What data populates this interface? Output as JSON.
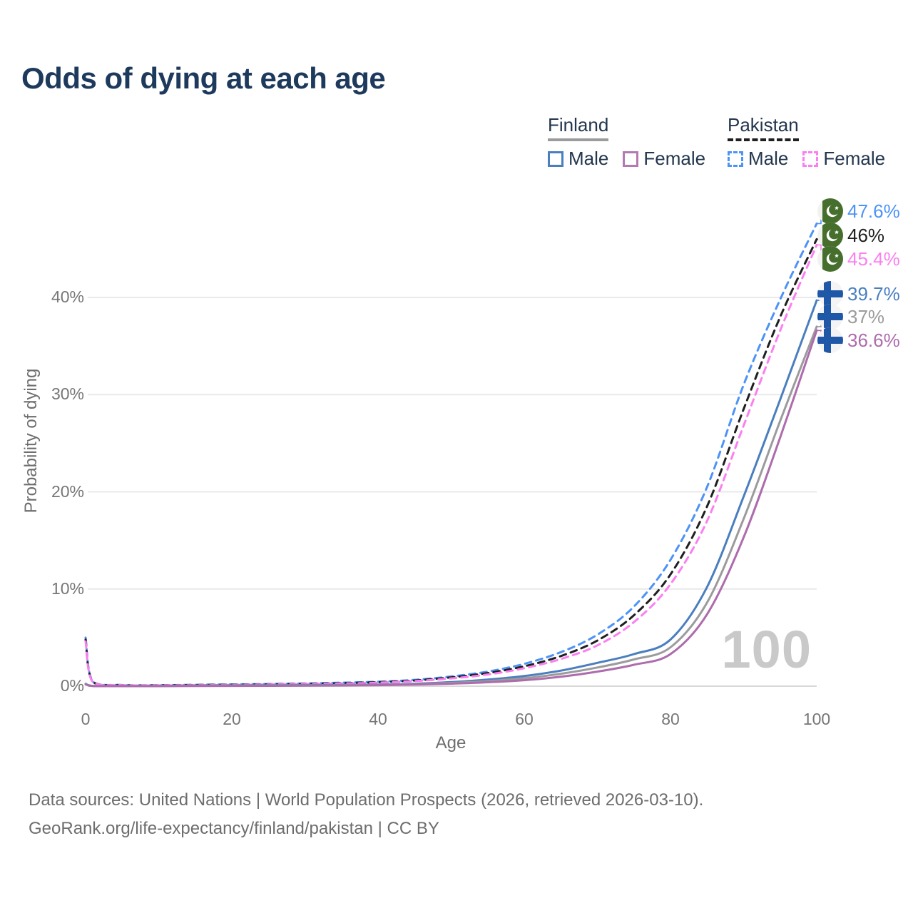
{
  "title": "Odds of dying at each age",
  "legend": {
    "groups": [
      {
        "name": "Finland",
        "items": [
          {
            "label": "Male"
          },
          {
            "label": "Female"
          }
        ]
      },
      {
        "name": "Pakistan",
        "items": [
          {
            "label": "Male"
          },
          {
            "label": "Female"
          }
        ]
      }
    ]
  },
  "chart_data": {
    "type": "line",
    "title": "Odds of dying at each age",
    "xlabel": "Age",
    "ylabel": "Probability of dying",
    "xlim": [
      0,
      100
    ],
    "ylim": [
      0,
      50
    ],
    "xticks": [
      0,
      20,
      40,
      60,
      80,
      100
    ],
    "yticks": [
      0,
      10,
      20,
      30,
      40
    ],
    "ytick_suffix": "%",
    "grid": "horizontal-only",
    "legend_position": "top-right",
    "ages": [
      0,
      1,
      5,
      10,
      15,
      20,
      25,
      30,
      35,
      40,
      45,
      50,
      55,
      60,
      65,
      70,
      75,
      80,
      85,
      90,
      95,
      100
    ],
    "series": [
      {
        "id": "pak-male",
        "name": "Pakistan Male",
        "country": "Pakistan",
        "color": "#4d93f7",
        "dash": true,
        "end_label": "47.6%",
        "end_value": 47.6,
        "values": [
          5.0,
          0.45,
          0.12,
          0.1,
          0.14,
          0.18,
          0.22,
          0.28,
          0.36,
          0.46,
          0.65,
          1.0,
          1.5,
          2.3,
          3.5,
          5.3,
          8.2,
          13.0,
          20.5,
          31.0,
          39.8,
          47.6
        ]
      },
      {
        "id": "pak-both",
        "name": "Pakistan Both sexes",
        "country": "Pakistan",
        "color": "#1f1f1f",
        "dash": true,
        "end_label": "46%",
        "end_value": 46,
        "values": [
          4.8,
          0.42,
          0.11,
          0.09,
          0.12,
          0.15,
          0.19,
          0.24,
          0.31,
          0.41,
          0.58,
          0.9,
          1.35,
          2.05,
          3.1,
          4.7,
          7.3,
          11.5,
          18.5,
          28.5,
          38.0,
          46.0
        ]
      },
      {
        "id": "pak-female",
        "name": "Pakistan Female",
        "country": "Pakistan",
        "color": "#fb7ff0",
        "dash": true,
        "end_label": "45.4%",
        "end_value": 45.4,
        "values": [
          4.6,
          0.4,
          0.1,
          0.08,
          0.1,
          0.13,
          0.17,
          0.21,
          0.27,
          0.36,
          0.52,
          0.8,
          1.2,
          1.85,
          2.8,
          4.2,
          6.6,
          10.5,
          17.0,
          26.8,
          36.6,
          45.4
        ]
      },
      {
        "id": "fin-male",
        "name": "Finland Male",
        "country": "Finland",
        "color": "#4a7ebf",
        "dash": false,
        "end_label": "39.7%",
        "end_value": 39.7,
        "values": [
          0.25,
          0.03,
          0.01,
          0.01,
          0.05,
          0.08,
          0.09,
          0.11,
          0.13,
          0.16,
          0.25,
          0.42,
          0.68,
          1.05,
          1.6,
          2.4,
          3.3,
          4.8,
          10.2,
          19.5,
          29.5,
          39.7
        ]
      },
      {
        "id": "fin-both",
        "name": "Finland Both sexes",
        "country": "Finland",
        "color": "#9b9b9b",
        "dash": false,
        "end_label": "37%",
        "end_value": 37,
        "values": [
          0.22,
          0.02,
          0.01,
          0.01,
          0.04,
          0.05,
          0.06,
          0.08,
          0.1,
          0.13,
          0.2,
          0.33,
          0.52,
          0.82,
          1.28,
          1.92,
          2.75,
          4.0,
          8.6,
          17.2,
          27.3,
          37.0
        ]
      },
      {
        "id": "fin-female",
        "name": "Finland Female",
        "country": "Finland",
        "color": "#ad6cac",
        "dash": false,
        "end_label": "36.6%",
        "end_value": 36.6,
        "values": [
          0.18,
          0.02,
          0.01,
          0.01,
          0.02,
          0.03,
          0.04,
          0.05,
          0.07,
          0.1,
          0.16,
          0.26,
          0.4,
          0.62,
          0.97,
          1.5,
          2.2,
          3.3,
          7.4,
          15.3,
          25.6,
          36.6
        ]
      }
    ],
    "colors": {
      "finland_male": "#4a7ebf",
      "finland_female": "#ad6cac",
      "finland_both": "#9b9b9b",
      "pakistan_male": "#4d93f7",
      "pakistan_female": "#fb7ff0",
      "pakistan_both": "#1f1f1f",
      "gridline": "#e9e9e9",
      "axis_line": "#d8d8d8",
      "pakistan_flag_green": "#466e2c",
      "finland_flag_blue": "#2058a8"
    }
  },
  "watermark": "100",
  "footer": {
    "line1": "Data sources: United Nations | World Population Prospects (2026, retrieved 2026-03-10).",
    "line2": "GeoRank.org/life-expectancy/finland/pakistan | CC BY"
  }
}
